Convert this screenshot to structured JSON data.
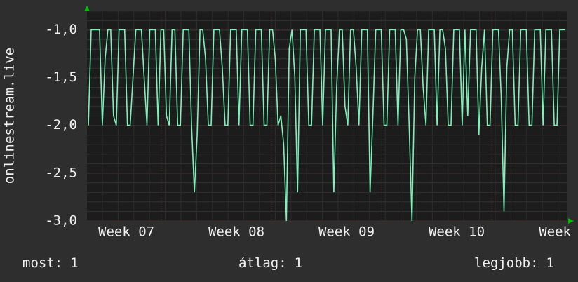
{
  "chart_data": {
    "type": "line",
    "y_label": "onlinestream.live",
    "color": "#7ff0b8",
    "values": [
      -2,
      -1,
      -1,
      -1,
      -1,
      -2,
      -1.3,
      -1,
      -1,
      -1.9,
      -2,
      -1,
      -1,
      -1,
      -2,
      -2,
      -1.5,
      -1,
      -1,
      -1,
      -1.5,
      -2,
      -1,
      -1,
      -1,
      -2,
      -1,
      -1,
      -1.9,
      -2,
      -1,
      -1,
      -2,
      -2,
      -1,
      -1,
      -1,
      -2,
      -2.7,
      -2.1,
      -1,
      -1,
      -1.3,
      -2,
      -2,
      -1,
      -1,
      -1,
      -1.4,
      -2,
      -2,
      -1,
      -1,
      -1,
      -2,
      -1,
      -1,
      -1,
      -2,
      -2,
      -1,
      -1,
      -1,
      -2,
      -2,
      -1,
      -1,
      -1.3,
      -2,
      -1.9,
      -2.2,
      -3,
      -1.2,
      -1,
      -1.5,
      -2.7,
      -1,
      -1,
      -1,
      -2,
      -2,
      -1,
      -1,
      -1,
      -2,
      -1,
      -1,
      -1,
      -2.7,
      -1.6,
      -1,
      -1,
      -1.8,
      -2,
      -1,
      -1,
      -1.4,
      -2,
      -1,
      -1,
      -1,
      -2.7,
      -1.9,
      -1,
      -1,
      -1,
      -2,
      -2,
      -1,
      -1,
      -1,
      -2,
      -1,
      -1,
      -1.1,
      -2,
      -3,
      -1.5,
      -1,
      -1,
      -1.6,
      -2,
      -1,
      -1,
      -1,
      -2,
      -1,
      -1,
      -1.2,
      -2,
      -2,
      -1,
      -1,
      -1,
      -2,
      -1,
      -1.9,
      -1,
      -1,
      -1,
      -2.1,
      -1.4,
      -1,
      -2,
      -2,
      -1,
      -1,
      -1,
      -1.7,
      -2.9,
      -1.4,
      -1,
      -1,
      -2,
      -2,
      -1,
      -1,
      -1,
      -2,
      -2,
      -1,
      -1,
      -1,
      -2,
      -1,
      -1,
      -1,
      -2,
      -2,
      -1,
      -1,
      -1
    ],
    "ylim": [
      -3,
      -0.8
    ],
    "yticks": [
      {
        "value": -3,
        "label": "-3,0"
      },
      {
        "value": -2.5,
        "label": "-2,5"
      },
      {
        "value": -2,
        "label": "-2,0"
      },
      {
        "value": -1.5,
        "label": "-1,5"
      },
      {
        "value": -1,
        "label": "-1,0"
      }
    ],
    "xlim": [
      6.643,
      11
    ],
    "xticks": [
      {
        "value": 7,
        "label": "Week 07"
      },
      {
        "value": 8,
        "label": "Week 08"
      },
      {
        "value": 9,
        "label": "Week 09"
      },
      {
        "value": 10,
        "label": "Week 10"
      },
      {
        "value": 11,
        "label": "Week"
      }
    ],
    "grid": true,
    "stats": [
      {
        "label": "most:",
        "value": 1
      },
      {
        "label": "átlag:",
        "value": 1
      },
      {
        "label": "legjobb:",
        "value": 1
      }
    ]
  }
}
